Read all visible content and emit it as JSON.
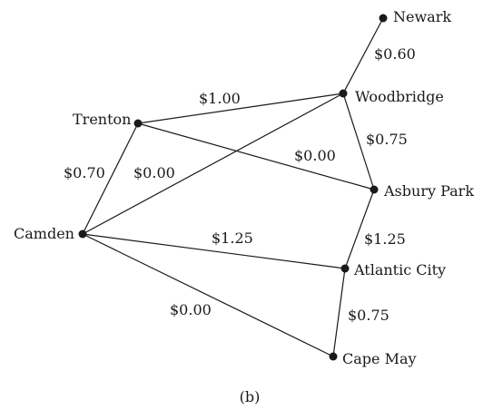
{
  "nodes": [
    {
      "id": "newark",
      "label": "Newark"
    },
    {
      "id": "woodbridge",
      "label": "Woodbridge"
    },
    {
      "id": "trenton",
      "label": "Trenton"
    },
    {
      "id": "asbury-park",
      "label": "Asbury Park"
    },
    {
      "id": "camden",
      "label": "Camden"
    },
    {
      "id": "atlantic-city",
      "label": "Atlantic City"
    },
    {
      "id": "cape-may",
      "label": "Cape May"
    }
  ],
  "edges": [
    {
      "from": "newark",
      "to": "woodbridge",
      "label": "$0.60"
    },
    {
      "from": "trenton",
      "to": "woodbridge",
      "label": "$1.00"
    },
    {
      "from": "woodbridge",
      "to": "asbury-park",
      "label": "$0.75"
    },
    {
      "from": "trenton",
      "to": "asbury-park",
      "label": "$0.00"
    },
    {
      "from": "trenton",
      "to": "camden",
      "label": "$0.70"
    },
    {
      "from": "camden",
      "to": "woodbridge",
      "label": "$0.00"
    },
    {
      "from": "asbury-park",
      "to": "atlantic-city",
      "label": "$1.25"
    },
    {
      "from": "camden",
      "to": "atlantic-city",
      "label": "$1.25"
    },
    {
      "from": "atlantic-city",
      "to": "cape-may",
      "label": "$0.75"
    },
    {
      "from": "camden",
      "to": "cape-may",
      "label": "$0.00"
    }
  ],
  "caption": "(b)"
}
